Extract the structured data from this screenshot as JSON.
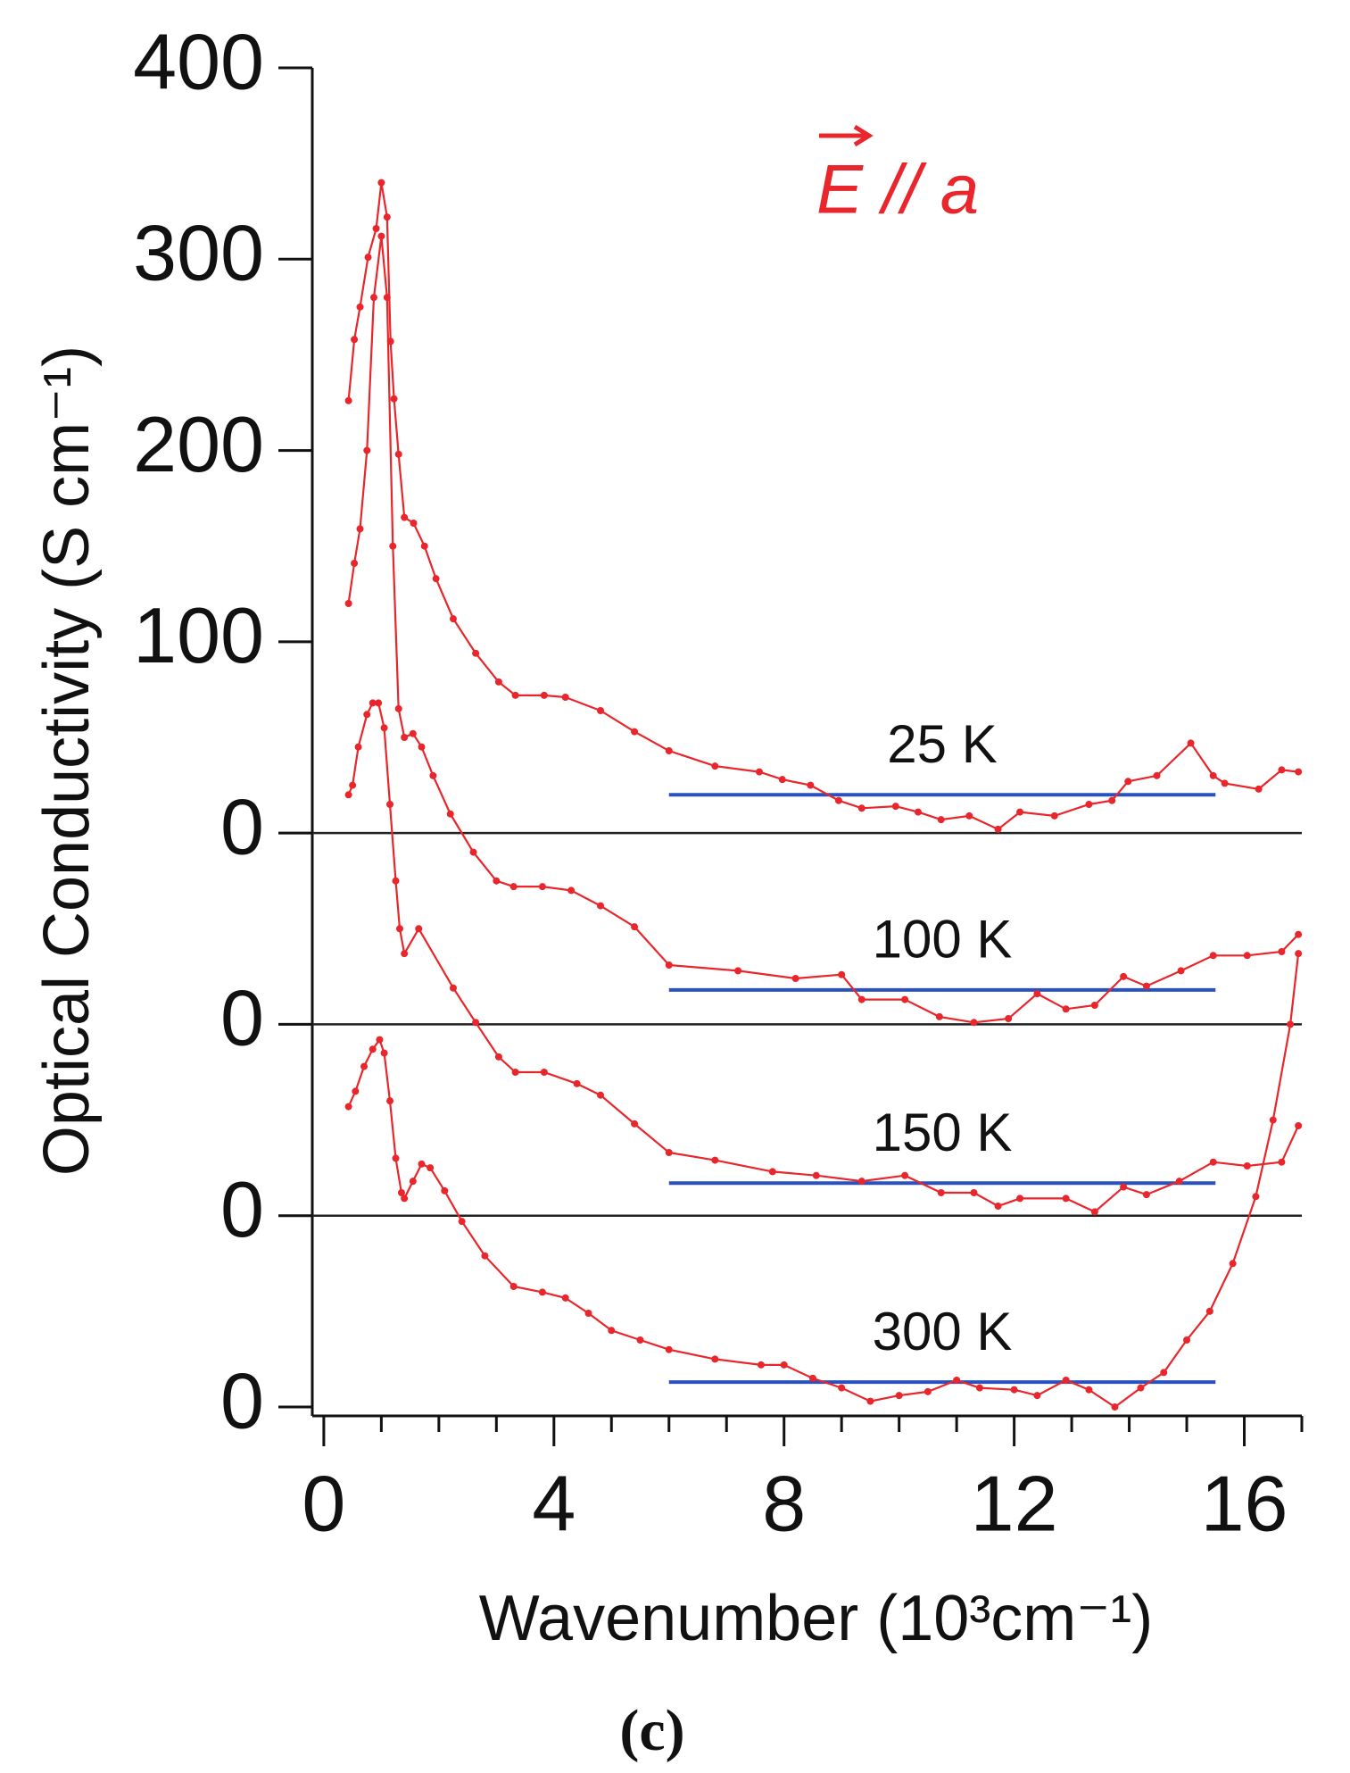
{
  "chart_data": [
    {
      "type": "line",
      "label": "25 K",
      "y_label": "Optical Conductivity (S cm⁻¹)",
      "annotation": "E // a",
      "xlim": [
        -0.2,
        17
      ],
      "ylim": [
        -300,
        400
      ],
      "yticks": [
        0,
        100,
        200,
        300,
        400
      ],
      "zeroline": true,
      "reference": {
        "value": 20,
        "x": [
          6,
          15.5
        ]
      },
      "reference_color": "#2a52be",
      "series": [
        {
          "name": "25 K",
          "color": "#e8262b",
          "x": [
            0.43,
            0.53,
            0.63,
            0.77,
            0.91,
            1.0,
            1.1,
            1.16,
            1.22,
            1.3,
            1.4,
            1.56,
            1.75,
            1.95,
            2.25,
            2.64,
            3.04,
            3.33,
            3.83,
            4.2,
            4.81,
            5.4,
            6.0,
            6.8,
            7.57,
            7.97,
            8.46,
            8.95,
            9.35,
            9.94,
            10.33,
            10.73,
            11.22,
            11.72,
            12.1,
            12.7,
            13.3,
            13.7,
            13.98,
            14.48,
            15.07,
            15.46,
            15.66,
            16.25,
            16.65,
            16.94
          ],
          "values": [
            226,
            258,
            275,
            301,
            316,
            340,
            322,
            257,
            227,
            198,
            165,
            162,
            150,
            133,
            112,
            94,
            79,
            72,
            72,
            71,
            64,
            53,
            43,
            35,
            32,
            28,
            25,
            17,
            13,
            14,
            11,
            7,
            9,
            2,
            11,
            9,
            15,
            17,
            27,
            30,
            47,
            30,
            26,
            23,
            33,
            32
          ]
        }
      ]
    },
    {
      "type": "line",
      "label": "100 K",
      "xlim": [
        -0.2,
        17
      ],
      "ylim": [
        -200,
        500
      ],
      "yticks": [
        0
      ],
      "zeroline": true,
      "reference": {
        "value": 18,
        "x": [
          6,
          15.5
        ]
      },
      "reference_color": "#2a52be",
      "series": [
        {
          "name": "100 K",
          "color": "#e8262b",
          "x": [
            0.43,
            0.53,
            0.63,
            0.75,
            0.87,
            1.0,
            1.1,
            1.2,
            1.3,
            1.4,
            1.55,
            1.7,
            1.9,
            2.2,
            2.6,
            3.0,
            3.3,
            3.8,
            4.3,
            4.81,
            5.4,
            6.0,
            7.2,
            8.2,
            9.0,
            9.35,
            10.1,
            10.7,
            11.3,
            11.9,
            12.4,
            12.9,
            13.4,
            13.9,
            14.3,
            14.9,
            15.46,
            16.05,
            16.65,
            16.94
          ],
          "values": [
            220,
            241,
            259,
            300,
            380,
            412,
            380,
            250,
            165,
            150,
            152,
            145,
            130,
            110,
            90,
            75,
            72,
            72,
            70,
            62,
            51,
            31,
            28,
            24,
            26,
            13,
            13,
            4,
            1,
            3,
            16,
            8,
            10,
            25,
            20,
            28,
            36,
            36,
            38,
            47
          ]
        }
      ]
    },
    {
      "type": "line",
      "label": "150 K",
      "xlim": [
        -0.2,
        17
      ],
      "ylim": [
        -100,
        600
      ],
      "yticks": [
        0
      ],
      "zeroline": true,
      "reference": {
        "value": 17,
        "x": [
          6,
          15.5
        ]
      },
      "reference_color": "#2a52be",
      "series": [
        {
          "name": "150 K",
          "color": "#e8262b",
          "x": [
            0.43,
            0.5,
            0.6,
            0.75,
            0.85,
            0.95,
            1.05,
            1.15,
            1.25,
            1.32,
            1.4,
            1.65,
            2.25,
            2.64,
            3.04,
            3.33,
            3.83,
            4.4,
            4.81,
            5.4,
            6.0,
            6.8,
            7.8,
            8.56,
            9.35,
            10.1,
            10.73,
            11.3,
            11.72,
            12.1,
            12.9,
            13.4,
            13.9,
            14.3,
            14.87,
            15.46,
            16.05,
            16.65,
            16.94
          ],
          "values": [
            220,
            225,
            245,
            262,
            268,
            268,
            255,
            215,
            175,
            150,
            137,
            150,
            119,
            101,
            83,
            75,
            75,
            69,
            63,
            48,
            33,
            29,
            23,
            21,
            18,
            21,
            12,
            12,
            5,
            9,
            9,
            2,
            15,
            11,
            18,
            28,
            26,
            28,
            47
          ]
        }
      ]
    },
    {
      "type": "line",
      "label": "300 K",
      "x_label": "Wavenumber (10³cm⁻¹)",
      "caption": "(c)",
      "xlim": [
        -0.2,
        17
      ],
      "ylim": [
        0,
        700
      ],
      "yticks": [
        0
      ],
      "zeroline": false,
      "xticks": [
        0,
        4,
        8,
        12,
        16
      ],
      "xminorticks": [
        1,
        2,
        3,
        5,
        6,
        7,
        9,
        10,
        11,
        13,
        14,
        15,
        17
      ],
      "reference": {
        "value": 13,
        "x": [
          6,
          15.5
        ]
      },
      "reference_color": "#2a52be",
      "series": [
        {
          "name": "300 K",
          "color": "#e8262b",
          "x": [
            0.43,
            0.55,
            0.7,
            0.85,
            0.97,
            1.05,
            1.15,
            1.25,
            1.35,
            1.4,
            1.55,
            1.7,
            1.85,
            2.1,
            2.4,
            2.8,
            3.3,
            3.8,
            4.2,
            4.6,
            5.0,
            5.5,
            6.0,
            6.8,
            7.6,
            8.0,
            8.5,
            9.0,
            9.5,
            10.0,
            10.5,
            11.0,
            11.4,
            12.0,
            12.4,
            12.9,
            13.3,
            13.75,
            14.2,
            14.6,
            15.0,
            15.4,
            15.8,
            16.2,
            16.5,
            16.8,
            16.94
          ],
          "values": [
            157,
            165,
            178,
            187,
            192,
            185,
            160,
            130,
            112,
            109,
            118,
            127,
            125,
            113,
            97,
            79,
            63,
            60,
            57,
            49,
            40,
            35,
            30,
            25,
            22,
            22,
            15,
            10,
            3,
            6,
            8,
            14,
            10,
            9,
            6,
            14,
            9,
            0,
            10,
            18,
            35,
            50,
            75,
            110,
            150,
            200,
            237
          ]
        }
      ]
    }
  ]
}
